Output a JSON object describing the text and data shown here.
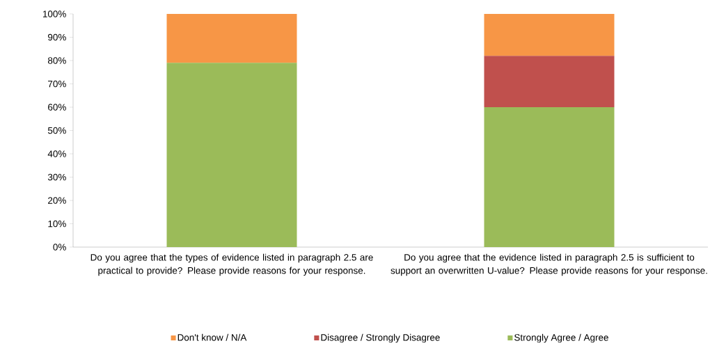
{
  "chart_data": {
    "type": "bar",
    "stacked": true,
    "categories": [
      "Do you agree that the types of evidence listed in paragraph 2.5 are practical to provide? Please provide reasons for your response.",
      "Do you agree that the evidence listed in paragraph 2.5 is sufficient to support an overwritten U-value? Please provide reasons for your response."
    ],
    "series": [
      {
        "name": "Strongly Agree / Agree",
        "color": "#9bbb59",
        "values": [
          79,
          60
        ]
      },
      {
        "name": "Disagree / Strongly Disagree",
        "color": "#c0504d",
        "values": [
          0,
          22
        ]
      },
      {
        "name": "Don't know / N/A",
        "color": "#f79646",
        "values": [
          21,
          18
        ]
      }
    ],
    "ylim": [
      0,
      100
    ],
    "yticks": [
      {
        "value": 0,
        "label": "0%"
      },
      {
        "value": 10,
        "label": "10%"
      },
      {
        "value": 20,
        "label": "20%"
      },
      {
        "value": 30,
        "label": "30%"
      },
      {
        "value": 40,
        "label": "40%"
      },
      {
        "value": 50,
        "label": "50%"
      },
      {
        "value": 60,
        "label": "60%"
      },
      {
        "value": 70,
        "label": "70%"
      },
      {
        "value": 80,
        "label": "80%"
      },
      {
        "value": 90,
        "label": "90%"
      },
      {
        "value": 100,
        "label": "100%"
      }
    ],
    "legend": "bottom"
  }
}
